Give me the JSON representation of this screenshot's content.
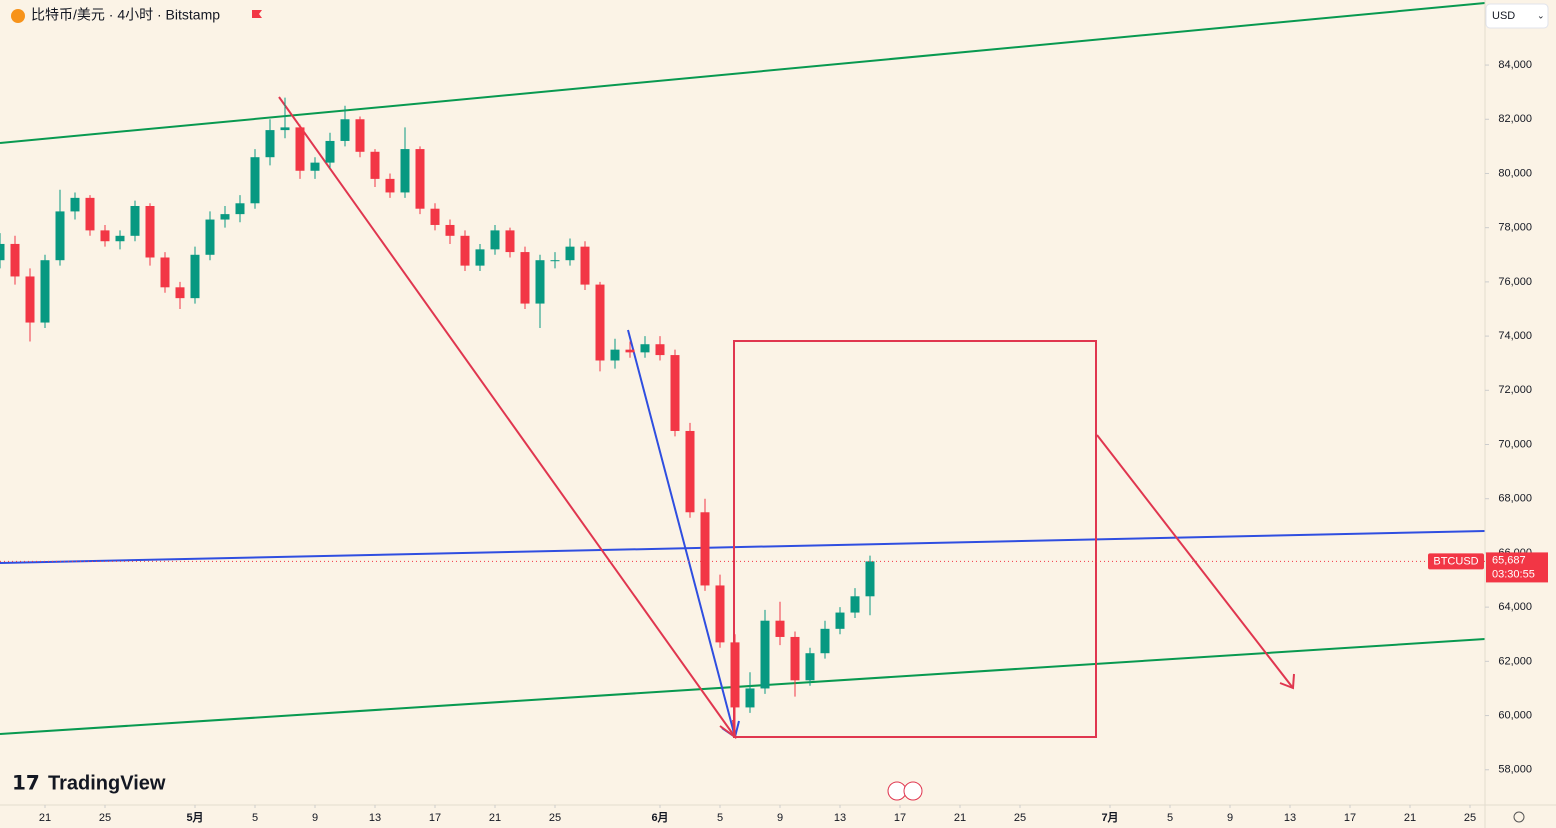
{
  "chart_data": {
    "type": "candlestick",
    "title": "比特币/美元 · 4小时 · Bitstamp",
    "currency": "USD",
    "brand": "TradingView",
    "up_color": "#089981",
    "down_color": "#f23645",
    "x": [
      109,
      110,
      111,
      112,
      113,
      114,
      115,
      116,
      117,
      118,
      119,
      120,
      121,
      122,
      123,
      124,
      125,
      126,
      127,
      128,
      129,
      130,
      131,
      132,
      133,
      134,
      135,
      136,
      137,
      138,
      139,
      140,
      141,
      142,
      143,
      144,
      145,
      146,
      147,
      148,
      149,
      150,
      151,
      152,
      153,
      154,
      155,
      156,
      157,
      158,
      159,
      160,
      161,
      162,
      163,
      164,
      165,
      166,
      167
    ],
    "open": [
      76800,
      77400,
      76200,
      74500,
      76800,
      78600,
      79100,
      77900,
      77500,
      77700,
      78800,
      76900,
      75800,
      75400,
      77000,
      78300,
      78500,
      78900,
      80600,
      81600,
      81700,
      80100,
      80400,
      81200,
      82000,
      80800,
      79800,
      79300,
      80900,
      78700,
      78100,
      77700,
      76600,
      77200,
      77900,
      77100,
      75200,
      76800,
      76800,
      77300,
      75900,
      73100,
      73500,
      73400,
      73700,
      73300,
      70500,
      67500,
      64800,
      62700,
      60300,
      61000,
      63500,
      62900,
      61300,
      62300,
      63200,
      63800,
      64400
    ],
    "high": [
      77800,
      77700,
      76500,
      77000,
      79400,
      79300,
      79200,
      78100,
      77900,
      79000,
      78900,
      77100,
      76000,
      77300,
      78600,
      78800,
      79200,
      80900,
      82000,
      82800,
      81800,
      80600,
      81500,
      82500,
      82100,
      80900,
      80000,
      81700,
      81000,
      78900,
      78300,
      77900,
      77400,
      78100,
      78000,
      77300,
      77000,
      77100,
      77600,
      77500,
      76000,
      73900,
      73800,
      74000,
      74000,
      73500,
      70800,
      68000,
      65200,
      63000,
      61600,
      63900,
      64200,
      63100,
      62500,
      63500,
      64000,
      64700,
      65900
    ],
    "low": [
      76500,
      75900,
      73800,
      74300,
      76600,
      78300,
      77700,
      77300,
      77200,
      77500,
      76600,
      75600,
      75000,
      75200,
      76800,
      78000,
      78200,
      78700,
      80300,
      81300,
      79800,
      79800,
      80200,
      81000,
      80600,
      79500,
      79100,
      79100,
      78500,
      77900,
      77400,
      76400,
      76400,
      77000,
      76900,
      75000,
      74300,
      76500,
      76600,
      75700,
      72700,
      72800,
      73200,
      73200,
      73100,
      70300,
      67300,
      64600,
      62500,
      59300,
      60100,
      60800,
      62600,
      60700,
      61100,
      62100,
      63000,
      63600,
      63700
    ],
    "close": [
      77400,
      76200,
      74500,
      76800,
      78600,
      79100,
      77900,
      77500,
      77700,
      78800,
      76900,
      75800,
      75400,
      77000,
      78300,
      78500,
      78900,
      80600,
      81600,
      81700,
      80100,
      80400,
      81200,
      82000,
      80800,
      79800,
      79300,
      80900,
      78700,
      78100,
      77700,
      76600,
      77200,
      77900,
      77100,
      75200,
      76800,
      76800,
      77300,
      75900,
      73100,
      73500,
      73400,
      73700,
      73300,
      70500,
      67500,
      64800,
      62700,
      60300,
      61000,
      63500,
      62900,
      61300,
      62300,
      63200,
      63800,
      64400,
      65687
    ],
    "xlim": [
      109,
      208
    ],
    "ylim": [
      56700,
      86400
    ],
    "xticks": [
      {
        "value": 112,
        "label": "21"
      },
      {
        "value": 116,
        "label": "25"
      },
      {
        "value": 122,
        "label": "5月"
      },
      {
        "value": 126,
        "label": "5"
      },
      {
        "value": 130,
        "label": "9"
      },
      {
        "value": 134,
        "label": "13"
      },
      {
        "value": 138,
        "label": "17"
      },
      {
        "value": 142,
        "label": "21"
      },
      {
        "value": 146,
        "label": "25"
      },
      {
        "value": 153,
        "label": "6月"
      },
      {
        "value": 157,
        "label": "5"
      },
      {
        "value": 161,
        "label": "9"
      },
      {
        "value": 165,
        "label": "13"
      },
      {
        "value": 169,
        "label": "17"
      },
      {
        "value": 173,
        "label": "21"
      },
      {
        "value": 177,
        "label": "25"
      },
      {
        "value": 183,
        "label": "7月"
      },
      {
        "value": 187,
        "label": "5"
      },
      {
        "value": 191,
        "label": "9"
      },
      {
        "value": 195,
        "label": "13"
      },
      {
        "value": 199,
        "label": "17"
      },
      {
        "value": 203,
        "label": "21"
      },
      {
        "value": 207,
        "label": "25"
      }
    ],
    "yticks": [
      {
        "value": 58000,
        "label": "58,000"
      },
      {
        "value": 60000,
        "label": "60,000"
      },
      {
        "value": 62000,
        "label": "62,000"
      },
      {
        "value": 64000,
        "label": "64,000"
      },
      {
        "value": 66000,
        "label": "66,000"
      },
      {
        "value": 68000,
        "label": "68,000"
      },
      {
        "value": 70000,
        "label": "70,000"
      },
      {
        "value": 72000,
        "label": "72,000"
      },
      {
        "value": 74000,
        "label": "74,000"
      },
      {
        "value": 76000,
        "label": "76,000"
      },
      {
        "value": 78000,
        "label": "78,000"
      },
      {
        "value": 80000,
        "label": "80,000"
      },
      {
        "value": 82000,
        "label": "82,000"
      },
      {
        "value": 84000,
        "label": "84,000"
      }
    ],
    "last_price": {
      "symbol": "BTCUSD",
      "value": 65687,
      "label": "65,687",
      "countdown": "03:30:55"
    }
  }
}
